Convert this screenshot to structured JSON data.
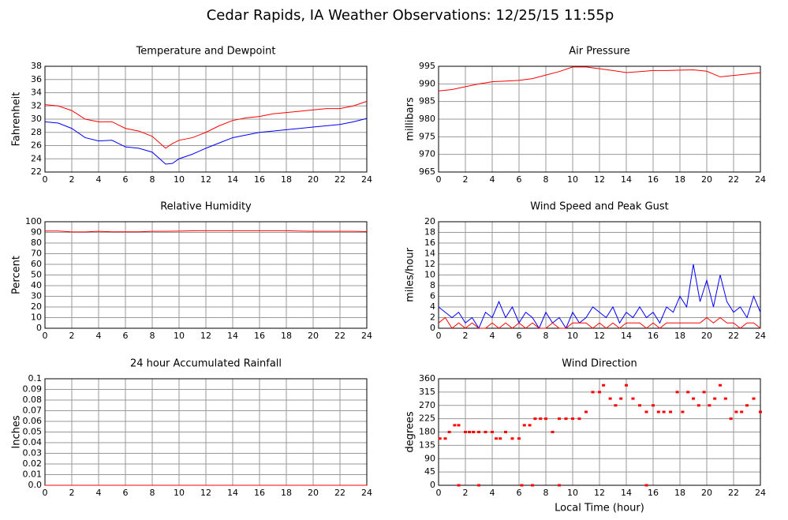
{
  "title": "Cedar Rapids, IA Weather Observations: 12/25/15 11:55p",
  "chart_data": [
    {
      "type": "line",
      "title": "Temperature and Dewpoint",
      "y_label": "Fahrenheit",
      "grid": true,
      "x": [
        0,
        1,
        2,
        3,
        4,
        5,
        6,
        7,
        8,
        9,
        9.5,
        10,
        11,
        12,
        13,
        14,
        15,
        16,
        17,
        18,
        19,
        20,
        21,
        22,
        23,
        24
      ],
      "series": [
        {
          "color": "#ff0000",
          "values": [
            32.2,
            32,
            31.3,
            30,
            29.6,
            29.6,
            28.6,
            28.2,
            27.4,
            25.6,
            26.3,
            26.8,
            27.2,
            28,
            29,
            29.8,
            30.2,
            30.4,
            30.8,
            31,
            31.2,
            31.4,
            31.6,
            31.6,
            32,
            32.7
          ]
        },
        {
          "color": "#0000ff",
          "values": [
            29.6,
            29.4,
            28.6,
            27.2,
            26.7,
            26.8,
            25.8,
            25.6,
            25,
            23.2,
            23.3,
            24,
            24.7,
            25.6,
            26.4,
            27.2,
            27.6,
            28,
            28.2,
            28.4,
            28.6,
            28.8,
            29,
            29.2,
            29.6,
            30.1
          ]
        }
      ],
      "xlim": [
        0,
        24
      ],
      "xticks": [
        0,
        2,
        4,
        6,
        8,
        10,
        12,
        14,
        16,
        18,
        20,
        22,
        24
      ],
      "ylim": [
        22,
        38
      ],
      "yticks": [
        22,
        24,
        26,
        28,
        30,
        32,
        34,
        36,
        38
      ]
    },
    {
      "type": "line",
      "title": "Air Pressure",
      "y_label": "millibars",
      "grid": true,
      "x": [
        0,
        1,
        2,
        3,
        4,
        5,
        6,
        7,
        8,
        9,
        10,
        11,
        12,
        13,
        14,
        15,
        16,
        17,
        18,
        19,
        20,
        21,
        22,
        23,
        24
      ],
      "series": [
        {
          "color": "#ff0000",
          "values": [
            988,
            988.4,
            989.2,
            990,
            990.6,
            990.8,
            991,
            991.5,
            992.5,
            993.5,
            994.8,
            994.8,
            994.3,
            993.8,
            993.2,
            993.5,
            993.8,
            993.8,
            993.9,
            994,
            993.6,
            992,
            992.4,
            992.8,
            993.2
          ]
        }
      ],
      "xlim": [
        0,
        24
      ],
      "xticks": [
        0,
        2,
        4,
        6,
        8,
        10,
        12,
        14,
        16,
        18,
        20,
        22,
        24
      ],
      "ylim": [
        965,
        995
      ],
      "yticks": [
        965,
        970,
        975,
        980,
        985,
        990,
        995
      ]
    },
    {
      "type": "line",
      "title": "Relative Humidity",
      "y_label": "Percent",
      "grid": true,
      "x": [
        0,
        1,
        2,
        3,
        4,
        5,
        6,
        7,
        8,
        9,
        10,
        11,
        12,
        13,
        14,
        15,
        16,
        17,
        18,
        19,
        20,
        21,
        22,
        23,
        24
      ],
      "series": [
        {
          "color": "#ff0000",
          "values": [
            91.3,
            91.3,
            90.5,
            90.5,
            91,
            90.6,
            90.6,
            90.6,
            91,
            91,
            91.2,
            91.5,
            91.6,
            91.6,
            91.6,
            91.6,
            91.6,
            91.6,
            91.6,
            91.2,
            91,
            91,
            91,
            91,
            90.7
          ]
        }
      ],
      "xlim": [
        0,
        24
      ],
      "xticks": [
        0,
        2,
        4,
        6,
        8,
        10,
        12,
        14,
        16,
        18,
        20,
        22,
        24
      ],
      "ylim": [
        0,
        100
      ],
      "yticks": [
        0,
        10,
        20,
        30,
        40,
        50,
        60,
        70,
        80,
        90,
        100
      ]
    },
    {
      "type": "line",
      "title": "Wind Speed and Peak Gust",
      "y_label": "miles/hour",
      "grid": true,
      "x": [
        0,
        0.5,
        1,
        1.5,
        2,
        2.5,
        3,
        3.5,
        4,
        4.5,
        5,
        5.5,
        6,
        6.5,
        7,
        7.5,
        8,
        8.5,
        9,
        9.5,
        10,
        10.5,
        11,
        11.5,
        12,
        12.5,
        13,
        13.5,
        14,
        14.5,
        15,
        15.5,
        16,
        16.5,
        17,
        17.5,
        18,
        18.5,
        19,
        19.5,
        20,
        20.5,
        21,
        21.5,
        22,
        22.5,
        23,
        23.5,
        24
      ],
      "series": [
        {
          "color": "#0000ff",
          "values": [
            4,
            3,
            2,
            3,
            1,
            2,
            0,
            3,
            2,
            5,
            2,
            4,
            1,
            3,
            2,
            0,
            3,
            1,
            2,
            0,
            3,
            1,
            2,
            4,
            3,
            2,
            4,
            1,
            3,
            2,
            4,
            2,
            3,
            1,
            4,
            3,
            6,
            4,
            12,
            5,
            9,
            4,
            10,
            5,
            3,
            4,
            2,
            6,
            3
          ]
        },
        {
          "color": "#ff0000",
          "values": [
            1,
            2,
            0,
            1,
            0,
            1,
            0,
            0,
            1,
            0,
            1,
            0,
            1,
            0,
            1,
            0,
            0,
            1,
            0,
            0,
            1,
            1,
            1,
            0,
            1,
            0,
            1,
            0,
            1,
            1,
            1,
            0,
            1,
            0,
            1,
            1,
            1,
            1,
            1,
            1,
            2,
            1,
            2,
            1,
            1,
            0,
            1,
            1,
            0
          ]
        }
      ],
      "xlim": [
        0,
        24
      ],
      "xticks": [
        0,
        2,
        4,
        6,
        8,
        10,
        12,
        14,
        16,
        18,
        20,
        22,
        24
      ],
      "ylim": [
        0,
        20
      ],
      "yticks": [
        0,
        2,
        4,
        6,
        8,
        10,
        12,
        14,
        16,
        18,
        20
      ]
    },
    {
      "type": "line",
      "title": "24 hour Accumulated Rainfall",
      "y_label": "Inches",
      "grid": true,
      "x": [
        0,
        24
      ],
      "series": [
        {
          "color": "#ff0000",
          "values": [
            0,
            0
          ]
        }
      ],
      "xlim": [
        0,
        24
      ],
      "xticks": [
        0,
        2,
        4,
        6,
        8,
        10,
        12,
        14,
        16,
        18,
        20,
        22,
        24
      ],
      "ylim": [
        0,
        0.1
      ],
      "yticks": [
        {
          "value": 0,
          "label": "0.0"
        },
        0.01,
        0.02,
        0.03,
        0.04,
        0.05,
        0.06,
        0.07,
        0.08,
        0.09,
        0.1
      ]
    },
    {
      "type": "scatter",
      "title": "Wind Direction",
      "y_label": "degrees",
      "x_label": "Local Time (hour)",
      "grid": true,
      "x": [
        0.1,
        0.5,
        0.8,
        1.2,
        1.5,
        2,
        2.3,
        2.6,
        3,
        3.5,
        4,
        4.3,
        4.6,
        5,
        5.5,
        6,
        6.4,
        6.8,
        7.2,
        7.6,
        8,
        8.5,
        9,
        9.5,
        10,
        10.5,
        11,
        11.5,
        12,
        12.3,
        12.8,
        13.2,
        13.6,
        14,
        14.5,
        15,
        15.5,
        16,
        16.4,
        16.8,
        17.3,
        17.8,
        18.2,
        18.6,
        19,
        19.4,
        19.8,
        20.2,
        20.6,
        21,
        21.4,
        21.8,
        22.2,
        22.6,
        23,
        23.5,
        24,
        1.5,
        3,
        6.2,
        7,
        9,
        15.5
      ],
      "series": [
        {
          "color": "#ff0000",
          "values": [
            158,
            158,
            180,
            203,
            203,
            180,
            180,
            180,
            180,
            180,
            180,
            158,
            158,
            180,
            158,
            158,
            203,
            203,
            225,
            225,
            225,
            180,
            225,
            225,
            225,
            225,
            248,
            315,
            315,
            338,
            293,
            270,
            293,
            338,
            293,
            270,
            248,
            270,
            248,
            248,
            248,
            315,
            248,
            315,
            293,
            270,
            315,
            270,
            293,
            338,
            293,
            225,
            248,
            248,
            270,
            293,
            248,
            0,
            0,
            0,
            0,
            0,
            0
          ]
        }
      ],
      "xlim": [
        0,
        24
      ],
      "xticks": [
        0,
        2,
        4,
        6,
        8,
        10,
        12,
        14,
        16,
        18,
        20,
        22,
        24
      ],
      "ylim": [
        0,
        360
      ],
      "yticks": [
        0,
        45,
        90,
        135,
        180,
        225,
        270,
        315,
        360
      ]
    }
  ]
}
